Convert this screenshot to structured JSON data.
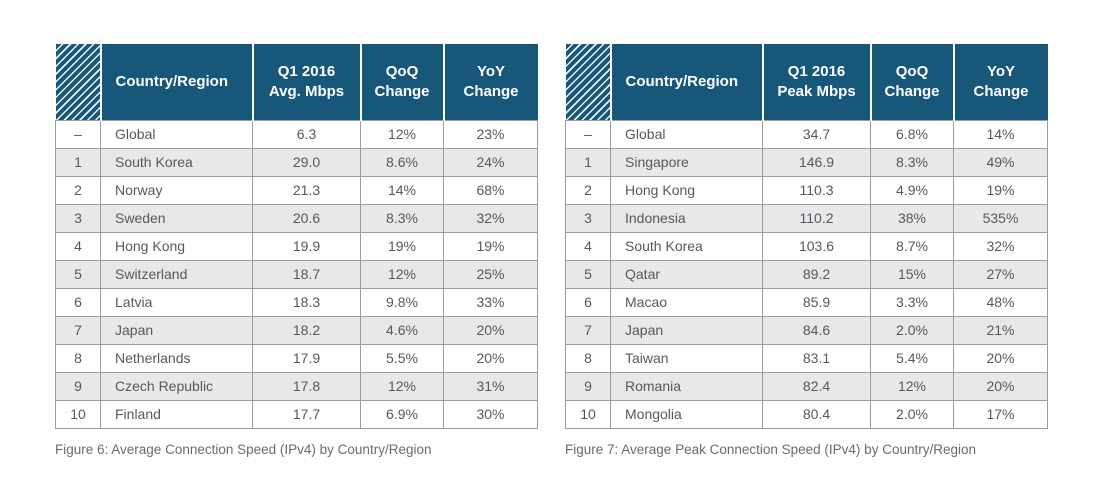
{
  "colors": {
    "header_bg": "#17587a",
    "header_text": "#ffffff",
    "row_alt_bg": "#e7e8ea",
    "row_bg": "#ffffff",
    "border": "#9c9da0",
    "body_text": "#57585b",
    "caption_text": "#6a6b6e",
    "hatch_line": "#ffffff"
  },
  "tables": [
    {
      "caption": "Figure 6: Average Connection Speed (IPv4) by Country/Region",
      "header": {
        "country": "Country/Region",
        "value": "Q1 2016\nAvg. Mbps",
        "qoq": "QoQ\nChange",
        "yoy": "YoY\nChange"
      },
      "rows": [
        {
          "rank": "–",
          "country": "Global",
          "value": "6.3",
          "qoq": "12%",
          "yoy": "23%"
        },
        {
          "rank": "1",
          "country": "South Korea",
          "value": "29.0",
          "qoq": "8.6%",
          "yoy": "24%"
        },
        {
          "rank": "2",
          "country": "Norway",
          "value": "21.3",
          "qoq": "14%",
          "yoy": "68%"
        },
        {
          "rank": "3",
          "country": "Sweden",
          "value": "20.6",
          "qoq": "8.3%",
          "yoy": "32%"
        },
        {
          "rank": "4",
          "country": "Hong Kong",
          "value": "19.9",
          "qoq": "19%",
          "yoy": "19%"
        },
        {
          "rank": "5",
          "country": "Switzerland",
          "value": "18.7",
          "qoq": "12%",
          "yoy": "25%"
        },
        {
          "rank": "6",
          "country": "Latvia",
          "value": "18.3",
          "qoq": "9.8%",
          "yoy": "33%"
        },
        {
          "rank": "7",
          "country": "Japan",
          "value": "18.2",
          "qoq": "4.6%",
          "yoy": "20%"
        },
        {
          "rank": "8",
          "country": "Netherlands",
          "value": "17.9",
          "qoq": "5.5%",
          "yoy": "20%"
        },
        {
          "rank": "9",
          "country": "Czech Republic",
          "value": "17.8",
          "qoq": "12%",
          "yoy": "31%"
        },
        {
          "rank": "10",
          "country": "Finland",
          "value": "17.7",
          "qoq": "6.9%",
          "yoy": "30%"
        }
      ]
    },
    {
      "caption": "Figure 7: Average Peak Connection Speed (IPv4) by Country/Region",
      "header": {
        "country": "Country/Region",
        "value": "Q1 2016\nPeak Mbps",
        "qoq": "QoQ\nChange",
        "yoy": "YoY\nChange"
      },
      "rows": [
        {
          "rank": "–",
          "country": "Global",
          "value": "34.7",
          "qoq": "6.8%",
          "yoy": "14%"
        },
        {
          "rank": "1",
          "country": "Singapore",
          "value": "146.9",
          "qoq": "8.3%",
          "yoy": "49%"
        },
        {
          "rank": "2",
          "country": "Hong Kong",
          "value": "110.3",
          "qoq": "4.9%",
          "yoy": "19%"
        },
        {
          "rank": "3",
          "country": "Indonesia",
          "value": "110.2",
          "qoq": "38%",
          "yoy": "535%"
        },
        {
          "rank": "4",
          "country": "South Korea",
          "value": "103.6",
          "qoq": "8.7%",
          "yoy": "32%"
        },
        {
          "rank": "5",
          "country": "Qatar",
          "value": "89.2",
          "qoq": "15%",
          "yoy": "27%"
        },
        {
          "rank": "6",
          "country": "Macao",
          "value": "85.9",
          "qoq": "3.3%",
          "yoy": "48%"
        },
        {
          "rank": "7",
          "country": "Japan",
          "value": "84.6",
          "qoq": "2.0%",
          "yoy": "21%"
        },
        {
          "rank": "8",
          "country": "Taiwan",
          "value": "83.1",
          "qoq": "5.4%",
          "yoy": "20%"
        },
        {
          "rank": "9",
          "country": "Romania",
          "value": "82.4",
          "qoq": "12%",
          "yoy": "20%"
        },
        {
          "rank": "10",
          "country": "Mongolia",
          "value": "80.4",
          "qoq": "2.0%",
          "yoy": "17%"
        }
      ]
    }
  ]
}
